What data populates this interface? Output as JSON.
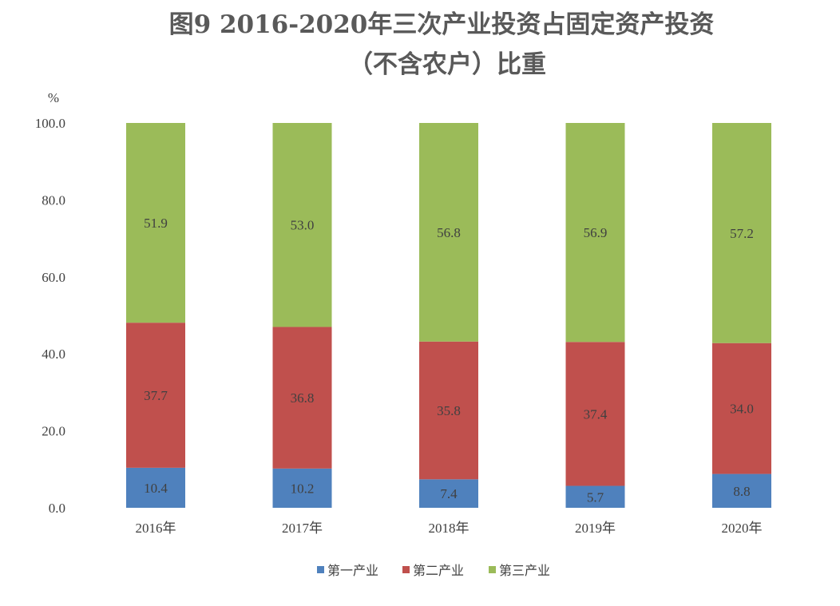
{
  "chart_data": {
    "type": "bar",
    "stacked": true,
    "title_line1": "图9  2016-2020年三次产业投资占固定资产投资",
    "title_line2": "（不含农户）比重",
    "ylabel": "%",
    "xlabel": "",
    "ylim": [
      0,
      100
    ],
    "yticks": [
      "0.0",
      "20.0",
      "40.0",
      "60.0",
      "80.0",
      "100.0"
    ],
    "categories": [
      "2016年",
      "2017年",
      "2018年",
      "2019年",
      "2020年"
    ],
    "series": [
      {
        "name": "第一产业",
        "values": [
          10.4,
          10.2,
          7.4,
          5.7,
          8.8
        ],
        "labels": [
          "10.4",
          "10.2",
          "7.4",
          "5.7",
          "8.8"
        ],
        "color": "#4f81bd"
      },
      {
        "name": "第二产业",
        "values": [
          37.7,
          36.8,
          35.8,
          37.4,
          34.0
        ],
        "labels": [
          "37.7",
          "36.8",
          "35.8",
          "37.4",
          "34.0"
        ],
        "color": "#c0504d"
      },
      {
        "name": "第三产业",
        "values": [
          51.9,
          53.0,
          56.8,
          56.9,
          57.2
        ],
        "labels": [
          "51.9",
          "53.0",
          "56.8",
          "56.9",
          "57.2"
        ],
        "color": "#9bbb59"
      }
    ],
    "grid": false,
    "legend_position": "bottom"
  }
}
